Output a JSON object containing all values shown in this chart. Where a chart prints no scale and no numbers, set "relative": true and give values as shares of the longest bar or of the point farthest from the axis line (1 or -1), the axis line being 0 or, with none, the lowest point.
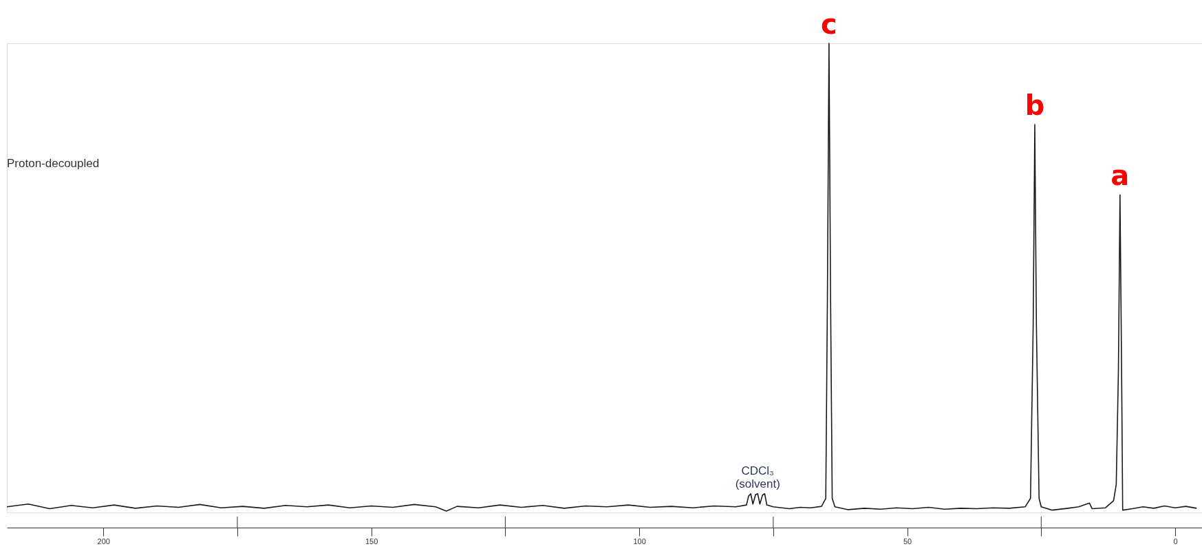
{
  "chart_data": {
    "type": "line",
    "relative": true,
    "color": "#1a1a1a",
    "annotations": [
      "Proton-decoupled",
      {
        "text": "c",
        "x": 64.6,
        "y": 1.0
      },
      {
        "text": "b",
        "x": 26.2,
        "y": 0.827
      },
      {
        "text": "a",
        "x": 10.3,
        "y": 0.677
      },
      {
        "text": "CDCl₃\n(solvent)",
        "x": 77.9,
        "y": 0.04
      }
    ],
    "xlim": [
      218,
      -5
    ],
    "xticks": [
      200,
      {
        "value": 175,
        "label": null
      },
      150,
      {
        "value": 125,
        "label": null
      },
      100,
      {
        "value": 75,
        "label": null
      },
      50,
      {
        "value": 25,
        "label": null
      },
      0
    ],
    "grid": false,
    "tick_labels": "x",
    "marker": "none",
    "line_style": "solid",
    "x": [
      218,
      214,
      210,
      206,
      202,
      198,
      194,
      190,
      186,
      182,
      178,
      174,
      170,
      166,
      162,
      158,
      154,
      150,
      146,
      142,
      138,
      136,
      134,
      130,
      126,
      122,
      118,
      114,
      110,
      106,
      102,
      98,
      94,
      90,
      86,
      82,
      80,
      79.6,
      79.2,
      78.8,
      78.3,
      77.9,
      77.5,
      77.0,
      76.6,
      76.2,
      75,
      72,
      70,
      68,
      66,
      65.2,
      64.9,
      64.6,
      64.3,
      64.0,
      63.5,
      61,
      58,
      55,
      52,
      49,
      46,
      43,
      40,
      37,
      34,
      31,
      28,
      27.0,
      26.5,
      26.2,
      25.9,
      25.4,
      25,
      23,
      20,
      18,
      16,
      15.5,
      13,
      11.5,
      11,
      10.6,
      10.3,
      10.0,
      9.8,
      8,
      6,
      4,
      2,
      0,
      -2,
      -4
    ],
    "values": [
      0.012,
      0.018,
      0.008,
      0.015,
      0.01,
      0.016,
      0.009,
      0.014,
      0.011,
      0.017,
      0.01,
      0.013,
      0.009,
      0.015,
      0.012,
      0.016,
      0.01,
      0.014,
      0.011,
      0.017,
      0.012,
      0.003,
      0.013,
      0.01,
      0.016,
      0.011,
      0.015,
      0.009,
      0.014,
      0.012,
      0.016,
      0.011,
      0.013,
      0.01,
      0.014,
      0.012,
      0.016,
      0.035,
      0.04,
      0.018,
      0.038,
      0.04,
      0.018,
      0.037,
      0.04,
      0.016,
      0.012,
      0.008,
      0.011,
      0.01,
      0.013,
      0.03,
      0.45,
      1.0,
      0.45,
      0.03,
      0.012,
      0.006,
      0.009,
      0.007,
      0.01,
      0.008,
      0.011,
      0.007,
      0.009,
      0.008,
      0.01,
      0.009,
      0.012,
      0.03,
      0.4,
      0.827,
      0.4,
      0.03,
      0.012,
      0.005,
      0.009,
      0.012,
      0.02,
      0.008,
      0.01,
      0.025,
      0.06,
      0.3,
      0.677,
      0.3,
      0.005,
      0.008,
      0.012,
      0.009,
      0.014,
      0.01,
      0.013,
      0.009
    ]
  }
}
